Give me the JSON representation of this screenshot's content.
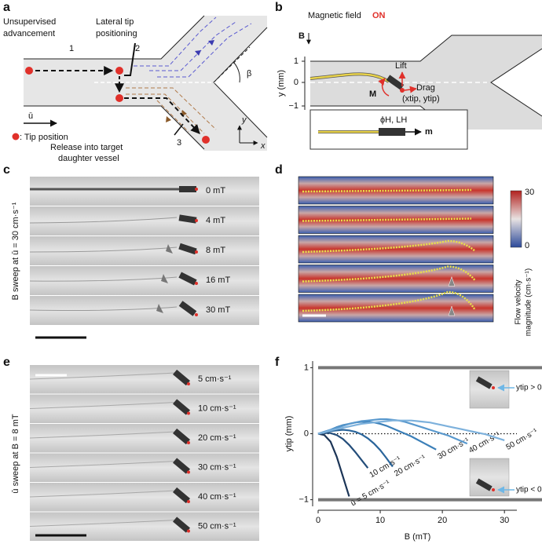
{
  "panel_a": {
    "label": "a",
    "advance_label": [
      "Unsupervised",
      "advancement"
    ],
    "lateral_label": [
      "Lateral tip",
      "positioning"
    ],
    "steps": [
      "1",
      "2",
      "3"
    ],
    "angle": "β",
    "flow": "ū",
    "legend": ": Tip position",
    "release_label": [
      "Release into target",
      "daughter vessel"
    ],
    "axes": [
      "y",
      "x"
    ]
  },
  "panel_b": {
    "label": "b",
    "field_label": "Magnetic field",
    "field_state": "ON",
    "field_symbol": "B",
    "ticks": [
      "1",
      "0",
      "−1"
    ],
    "ylabel": "y (mm)",
    "lift": "Lift",
    "moment": "M",
    "drag": "Drag",
    "tip": "(xtip, ytip)",
    "head": "ϕH, LH",
    "dipole": "m"
  },
  "panel_c": {
    "label": "c",
    "side_label": "B sweep at ū = 30 cm·s⁻¹",
    "rows": [
      "0 mT",
      "4 mT",
      "8 mT",
      "16 mT",
      "30 mT"
    ]
  },
  "panel_d": {
    "label": "d",
    "colorbar_ticks": [
      "30",
      "0"
    ],
    "colorbar_label": [
      "Flow velocity",
      "magnitude (cm·s⁻¹)"
    ]
  },
  "panel_e": {
    "label": "e",
    "side_label": "ū sweep at B = 8 mT",
    "rows": [
      "5 cm·s⁻¹",
      "10 cm·s⁻¹",
      "20 cm·s⁻¹",
      "30 cm·s⁻¹",
      "40 cm·s⁻¹",
      "50 cm·s⁻¹"
    ]
  },
  "panel_f": {
    "label": "f"
  },
  "chart_data": {
    "type": "line",
    "x_label": "B (mT)",
    "y_label": "ytip (mm)",
    "xlim": [
      0,
      32
    ],
    "ylim": [
      -1.1,
      1.1
    ],
    "xticks": [
      0,
      10,
      20,
      30
    ],
    "yticks": [
      {
        "value": -1,
        "label": "−1"
      },
      0,
      1
    ],
    "annotations": [
      "ytip > 0",
      "ytip < 0"
    ],
    "x": [
      0,
      1,
      2,
      3,
      4,
      5,
      6,
      7,
      8,
      9,
      10,
      11,
      12,
      13,
      14,
      15,
      16,
      17,
      18,
      19,
      20,
      21,
      22,
      23,
      24,
      25,
      26,
      27,
      28,
      29,
      30
    ],
    "series": [
      {
        "name": "ū = 5 cm·s⁻¹",
        "color": "#1c3557",
        "values": [
          0,
          -0.02,
          -0.12,
          -0.35,
          -0.65,
          -0.95,
          null,
          null,
          null,
          null,
          null,
          null,
          null,
          null,
          null,
          null,
          null,
          null,
          null,
          null,
          null,
          null,
          null,
          null,
          null,
          null,
          null,
          null,
          null,
          null,
          null
        ]
      },
      {
        "name": "10 cm·s⁻¹",
        "color": "#234d7a",
        "values": [
          0,
          0.01,
          0.01,
          -0.02,
          -0.08,
          -0.17,
          -0.28,
          -0.4,
          -0.52,
          null,
          null,
          null,
          null,
          null,
          null,
          null,
          null,
          null,
          null,
          null,
          null,
          null,
          null,
          null,
          null,
          null,
          null,
          null,
          null,
          null,
          null
        ]
      },
      {
        "name": "20 cm·s⁻¹",
        "color": "#2a659b",
        "values": [
          0,
          0.02,
          0.04,
          0.05,
          0.06,
          0.05,
          0.03,
          -0.01,
          -0.07,
          -0.15,
          -0.25,
          -0.37,
          -0.5,
          null,
          null,
          null,
          null,
          null,
          null,
          null,
          null,
          null,
          null,
          null,
          null,
          null,
          null,
          null,
          null,
          null,
          null
        ]
      },
      {
        "name": "30 cm·s⁻¹",
        "color": "#3b7fb8",
        "values": [
          0,
          0.03,
          0.06,
          0.1,
          0.13,
          0.15,
          0.17,
          0.18,
          0.18,
          0.17,
          0.15,
          0.12,
          0.08,
          0.04,
          0,
          -0.04,
          -0.09,
          -0.14,
          -0.19,
          -0.24,
          null,
          null,
          null,
          null,
          null,
          null,
          null,
          null,
          null,
          null,
          null
        ]
      },
      {
        "name": "40 cm·s⁻¹",
        "color": "#5898cd",
        "values": [
          0,
          0.03,
          0.06,
          0.09,
          0.12,
          0.15,
          0.17,
          0.19,
          0.2,
          0.21,
          0.22,
          0.22,
          0.21,
          0.2,
          0.18,
          0.15,
          0.12,
          0.09,
          0.06,
          0.03,
          0,
          -0.03,
          -0.07,
          -0.11,
          -0.15,
          null,
          null,
          null,
          null,
          null,
          null
        ]
      },
      {
        "name": "50 cm·s⁻¹",
        "color": "#7db1dc",
        "values": [
          0,
          0.02,
          0.05,
          0.07,
          0.09,
          0.11,
          0.13,
          0.15,
          0.16,
          0.17,
          0.18,
          0.19,
          0.2,
          0.2,
          0.2,
          0.2,
          0.19,
          0.18,
          0.17,
          0.15,
          0.13,
          0.11,
          0.09,
          0.07,
          0.05,
          0.03,
          0.01,
          -0.01,
          -0.04,
          -0.07,
          -0.1
        ]
      }
    ]
  }
}
